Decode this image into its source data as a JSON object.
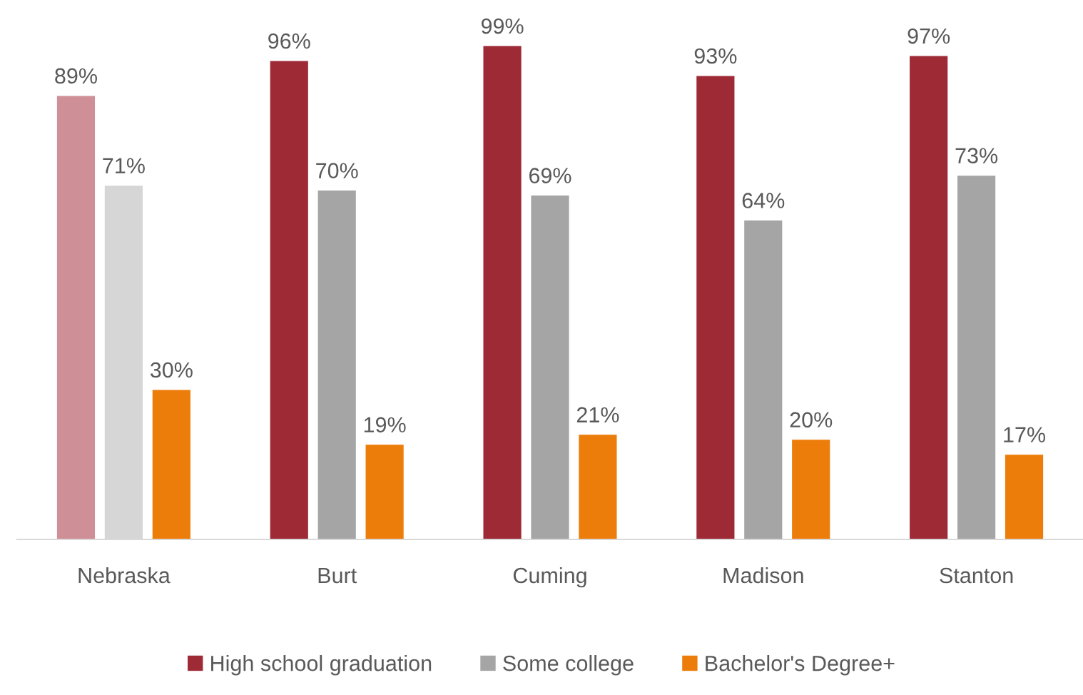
{
  "chart_data": {
    "type": "bar",
    "categories": [
      "Nebraska",
      "Burt",
      "Cuming",
      "Madison",
      "Stanton"
    ],
    "series": [
      {
        "name": "High school graduation",
        "color": "#9e2a36",
        "colors": [
          "#cf8f96",
          "#9e2a36",
          "#9e2a36",
          "#9e2a36",
          "#9e2a36"
        ],
        "values": [
          89,
          96,
          99,
          93,
          97
        ],
        "value_labels": [
          "89%",
          "96%",
          "99%",
          "93%",
          "97%"
        ]
      },
      {
        "name": "Some college",
        "color": "#a5a5a5",
        "colors": [
          "#d6d6d6",
          "#a5a5a5",
          "#a5a5a5",
          "#a5a5a5",
          "#a5a5a5"
        ],
        "values": [
          71,
          70,
          69,
          64,
          73
        ],
        "value_labels": [
          "71%",
          "70%",
          "69%",
          "64%",
          "73%"
        ]
      },
      {
        "name": "Bachelor's Degree+",
        "color": "#ed7d0a",
        "colors": [
          "#ed7d0a",
          "#ed7d0a",
          "#ed7d0a",
          "#ed7d0a",
          "#ed7d0a"
        ],
        "values": [
          30,
          19,
          21,
          20,
          17
        ],
        "value_labels": [
          "30%",
          "19%",
          "21%",
          "20%",
          "17%"
        ]
      }
    ],
    "tick_labels": "x",
    "legend": "bottom",
    "grid": false
  }
}
